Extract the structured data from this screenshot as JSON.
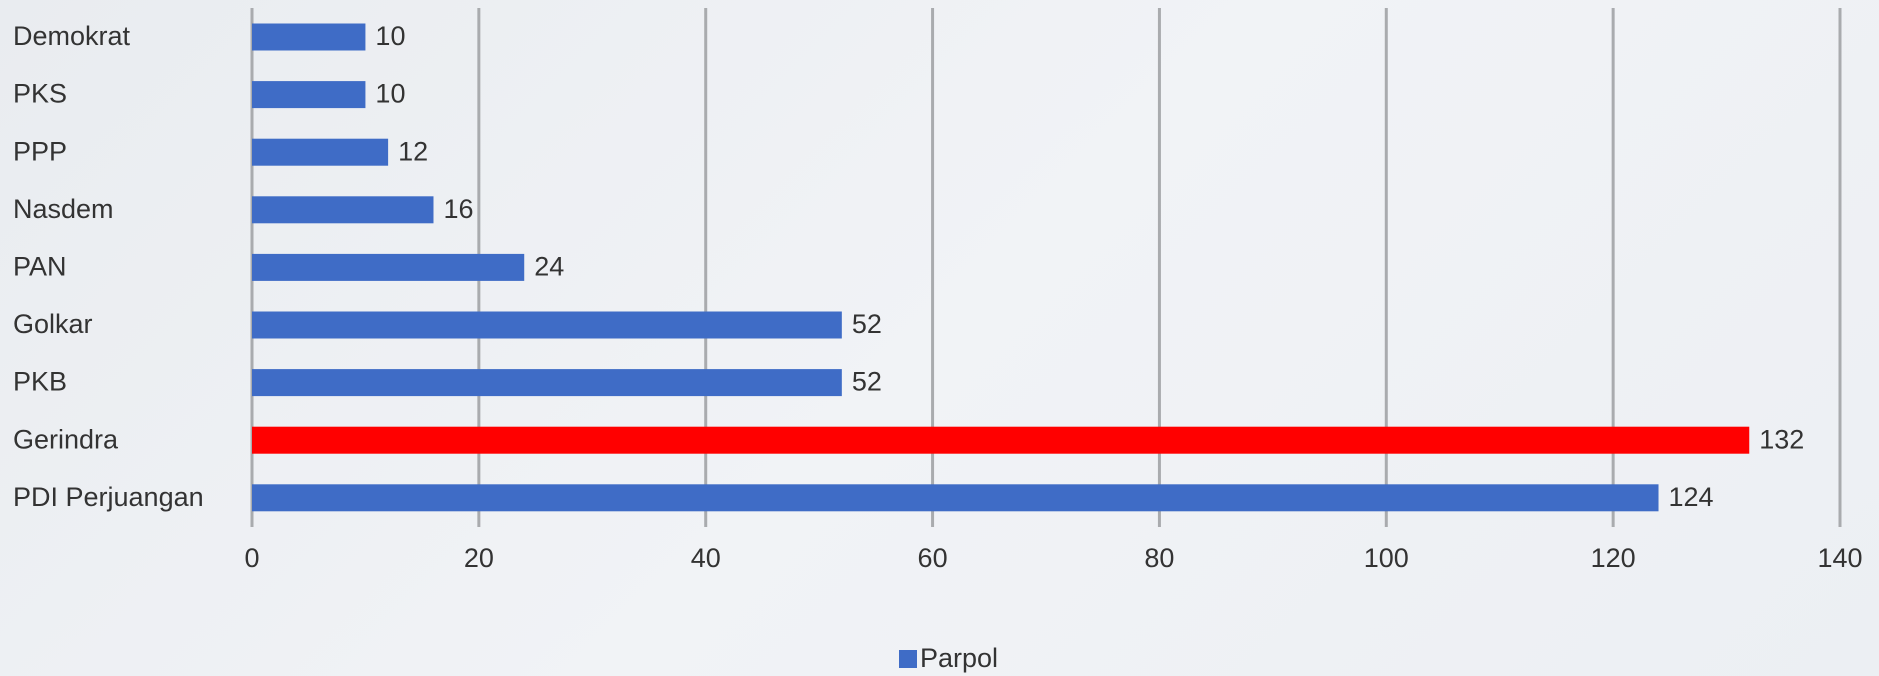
{
  "chart_data": {
    "type": "bar",
    "orientation": "horizontal",
    "categories": [
      "Demokrat",
      "PKS",
      "PPP",
      "Nasdem",
      "PAN",
      "Golkar",
      "PKB",
      "Gerindra",
      "PDI Perjuangan"
    ],
    "series": [
      {
        "name": "Parpol",
        "color": "#3f6cc6",
        "values": [
          10,
          10,
          12,
          16,
          24,
          52,
          52,
          132,
          124
        ],
        "colors": [
          "#3f6cc6",
          "#3f6cc6",
          "#3f6cc6",
          "#3f6cc6",
          "#3f6cc6",
          "#3f6cc6",
          "#3f6cc6",
          "#ff0000",
          "#3f6cc6"
        ]
      }
    ],
    "xlim": [
      0,
      140
    ],
    "xticks": [
      0,
      20,
      40,
      60,
      80,
      100,
      120,
      140
    ],
    "grid": true,
    "legend": "bottom"
  }
}
